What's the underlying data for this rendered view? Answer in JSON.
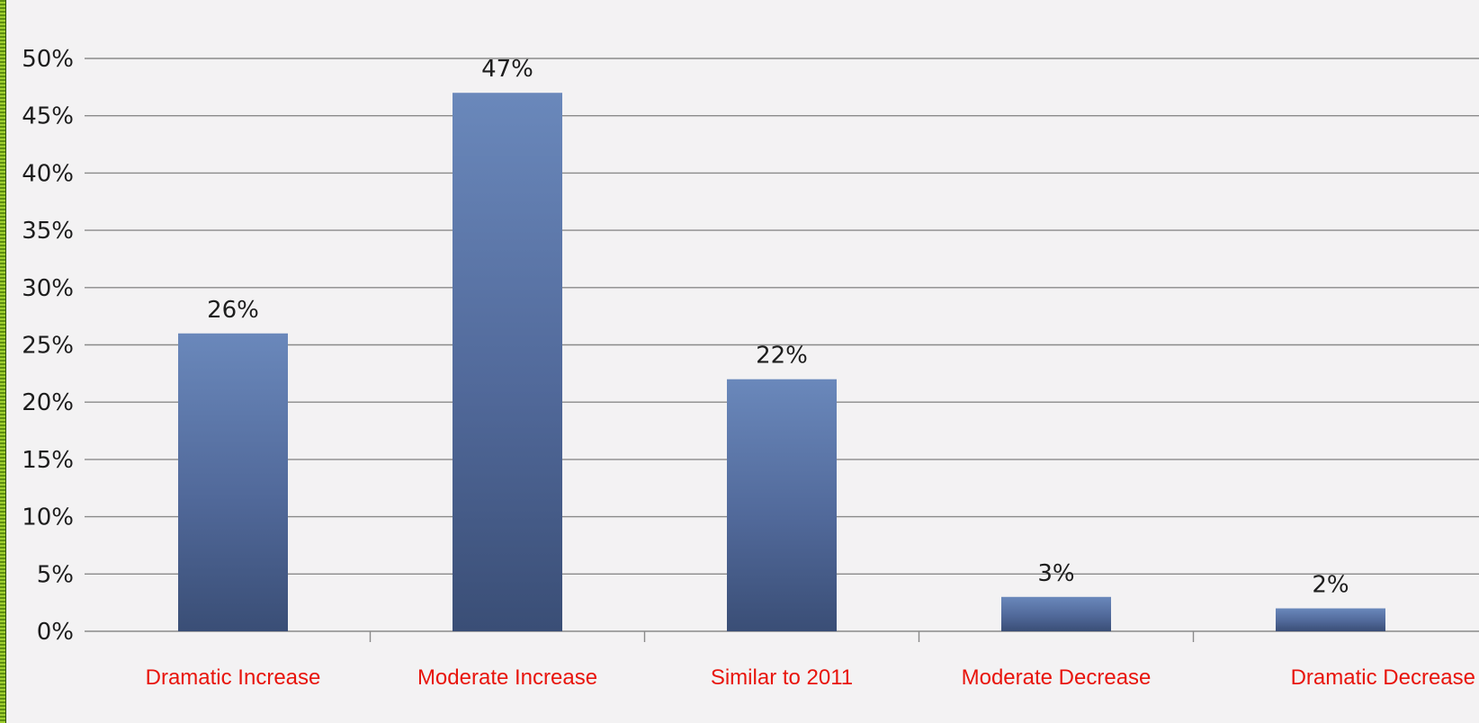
{
  "chart_data": {
    "type": "bar",
    "categories": [
      "Dramatic Increase",
      "Moderate Increase",
      "Similar to 2011",
      "Moderate Decrease",
      "Dramatic Decrease"
    ],
    "values": [
      26,
      47,
      22,
      3,
      2
    ],
    "data_labels": [
      "26%",
      "47%",
      "22%",
      "3%",
      "2%"
    ],
    "y_ticks": [
      {
        "value": 0,
        "label": "0%"
      },
      {
        "value": 5,
        "label": "5%"
      },
      {
        "value": 10,
        "label": "10%"
      },
      {
        "value": 15,
        "label": "15%"
      },
      {
        "value": 20,
        "label": "20%"
      },
      {
        "value": 25,
        "label": "25%"
      },
      {
        "value": 30,
        "label": "30%"
      },
      {
        "value": 35,
        "label": "35%"
      },
      {
        "value": 40,
        "label": "40%"
      },
      {
        "value": 45,
        "label": "45%"
      },
      {
        "value": 50,
        "label": "50%"
      }
    ],
    "ylim": [
      0,
      50
    ],
    "grid": true,
    "legend": "none",
    "colors": {
      "bar_top": "#6a88bb",
      "bar_bottom": "#3a4e76",
      "category_label": "#e8140c",
      "grid": "#8a8a8a",
      "background": "#f3f2f3"
    }
  }
}
